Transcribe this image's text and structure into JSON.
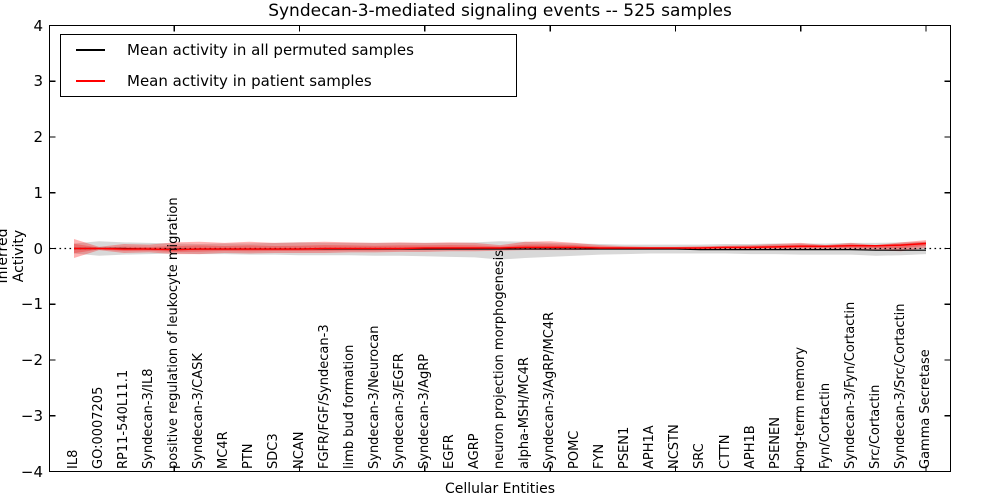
{
  "title": "Syndecan-3-mediated signaling events -- 525 samples",
  "axes": {
    "x_label": "Cellular Entities",
    "y_label": "Inferred Activity",
    "y_ticks": [
      "4",
      "3",
      "2",
      "1",
      "0",
      "−1",
      "−2",
      "−3",
      "−4"
    ],
    "y_tick_values": [
      4,
      3,
      2,
      1,
      0,
      -1,
      -2,
      -3,
      -4
    ],
    "ylim": [
      -4,
      4
    ]
  },
  "legend": {
    "items": [
      {
        "label": "Mean activity in all permuted samples",
        "color": "#000000"
      },
      {
        "label": "Mean activity in patient samples",
        "color": "#ff0000"
      }
    ]
  },
  "colors": {
    "patient_line": "#ff0000",
    "permuted_line": "#000000",
    "patient_band": "#ff0000",
    "permuted_band": "#999999"
  },
  "chart_data": {
    "type": "line",
    "title": "Syndecan-3-mediated signaling events -- 525 samples",
    "xlabel": "Cellular Entities",
    "ylabel": "Inferred Activity",
    "ylim": [
      -4,
      4
    ],
    "grid": false,
    "legend_position": "upper left",
    "zero_line": true,
    "categories": [
      "IL8",
      "GO:0007205",
      "RP11-540L11.1",
      "Syndecan-3/IL8",
      "positive regulation of leukocyte migration",
      "Syndecan-3/CASK",
      "MC4R",
      "PTN",
      "SDC3",
      "NCAN",
      "FGFR/FGF/Syndecan-3",
      "limb bud formation",
      "Syndecan-3/Neurocan",
      "Syndecan-3/EGFR",
      "Syndecan-3/AgRP",
      "EGFR",
      "AGRP",
      "neuron projection morphogenesis",
      "alpha-MSH/MC4R",
      "Syndecan-3/AgRP/MC4R",
      "POMC",
      "FYN",
      "PSEN1",
      "APH1A",
      "NCSTN",
      "SRC",
      "CTTN",
      "APH1B",
      "PSENEN",
      "long-term memory",
      "Fyn/Cortactin",
      "Syndecan-3/Fyn/Cortactin",
      "Src/Cortactin",
      "Syndecan-3/Src/Cortactin",
      "Gamma Secretase"
    ],
    "series": [
      {
        "name": "Mean activity in all permuted samples",
        "role": "line",
        "color": "#000000",
        "values": [
          0.0,
          0.0,
          0.0,
          -0.01,
          -0.01,
          -0.01,
          -0.01,
          -0.01,
          -0.01,
          -0.01,
          -0.01,
          -0.01,
          -0.01,
          -0.01,
          -0.01,
          -0.01,
          -0.01,
          -0.01,
          -0.01,
          -0.01,
          -0.01,
          -0.01,
          -0.01,
          -0.01,
          -0.01,
          -0.02,
          -0.02,
          -0.02,
          -0.02,
          -0.02,
          -0.02,
          -0.02,
          -0.03,
          -0.03,
          -0.03
        ]
      },
      {
        "name": "Mean activity in patient samples",
        "role": "line",
        "color": "#ff0000",
        "values": [
          0.0,
          0.0,
          -0.01,
          -0.01,
          -0.02,
          -0.01,
          -0.01,
          -0.01,
          -0.01,
          -0.01,
          0.0,
          0.0,
          0.0,
          0.0,
          0.01,
          0.01,
          0.01,
          0.01,
          0.02,
          0.02,
          0.02,
          0.01,
          0.01,
          0.01,
          0.01,
          0.01,
          0.02,
          0.02,
          0.03,
          0.04,
          0.04,
          0.05,
          0.05,
          0.06,
          0.09
        ]
      },
      {
        "name": "Permuted samples activity range (upper)",
        "role": "band-upper",
        "color": "#999999",
        "values": [
          0.09,
          0.13,
          0.11,
          0.1,
          0.09,
          0.08,
          0.09,
          0.09,
          0.1,
          0.11,
          0.1,
          0.1,
          0.1,
          0.1,
          0.1,
          0.1,
          0.11,
          0.13,
          0.12,
          0.1,
          0.09,
          0.08,
          0.07,
          0.07,
          0.07,
          0.07,
          0.08,
          0.08,
          0.09,
          0.09,
          0.09,
          0.1,
          0.1,
          0.11,
          0.12
        ]
      },
      {
        "name": "Permuted samples activity range (lower)",
        "role": "band-lower",
        "color": "#999999",
        "values": [
          -0.09,
          -0.13,
          -0.11,
          -0.1,
          -0.09,
          -0.1,
          -0.1,
          -0.11,
          -0.11,
          -0.12,
          -0.12,
          -0.12,
          -0.13,
          -0.13,
          -0.14,
          -0.15,
          -0.16,
          -0.2,
          -0.17,
          -0.15,
          -0.13,
          -0.11,
          -0.1,
          -0.09,
          -0.09,
          -0.09,
          -0.09,
          -0.1,
          -0.1,
          -0.11,
          -0.11,
          -0.11,
          -0.13,
          -0.12,
          -0.1
        ]
      },
      {
        "name": "Patient samples activity range (upper)",
        "role": "band-upper",
        "color": "#ff0000",
        "values": [
          0.17,
          0.03,
          0.08,
          0.07,
          0.11,
          0.12,
          0.1,
          0.12,
          0.1,
          0.11,
          0.12,
          0.11,
          0.1,
          0.11,
          0.1,
          0.11,
          0.1,
          0.06,
          0.12,
          0.13,
          0.1,
          0.06,
          0.04,
          0.03,
          0.03,
          0.04,
          0.05,
          0.06,
          0.08,
          0.1,
          0.06,
          0.1,
          0.06,
          0.11,
          0.15
        ]
      },
      {
        "name": "Patient samples activity range (lower)",
        "role": "band-lower",
        "color": "#ff0000",
        "values": [
          -0.17,
          -0.03,
          -0.08,
          -0.07,
          -0.1,
          -0.1,
          -0.08,
          -0.09,
          -0.08,
          -0.08,
          -0.08,
          -0.07,
          -0.07,
          -0.06,
          -0.06,
          -0.05,
          -0.05,
          -0.04,
          -0.03,
          -0.03,
          -0.03,
          -0.02,
          -0.02,
          -0.02,
          -0.02,
          -0.02,
          -0.02,
          -0.02,
          -0.02,
          -0.02,
          -0.02,
          -0.02,
          -0.03,
          -0.05,
          0.01
        ]
      }
    ]
  }
}
